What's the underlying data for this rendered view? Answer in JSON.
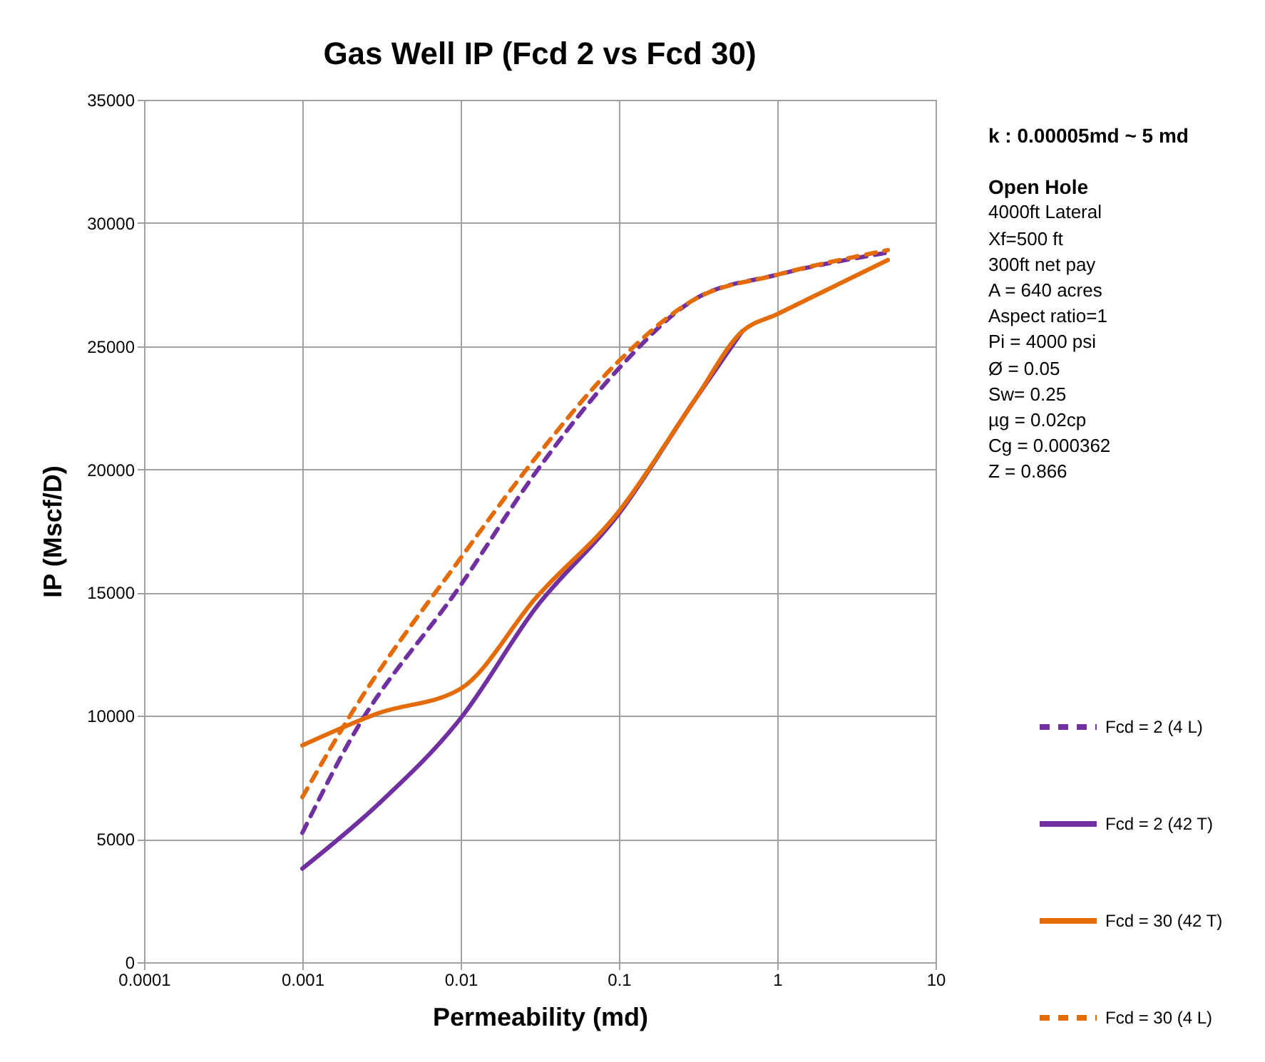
{
  "chart_data": {
    "type": "line",
    "title": "Gas Well IP (Fcd 2 vs Fcd 30)",
    "xlabel": "Permeability (md)",
    "ylabel": "IP (Mscf/D)",
    "log": "x",
    "xlim": [
      0.0001,
      10
    ],
    "xticks": [
      0.0001,
      0.001,
      0.01,
      0.1,
      1,
      10
    ],
    "ylim": [
      0,
      35000
    ],
    "yticks": [
      0,
      5000,
      10000,
      15000,
      20000,
      25000,
      30000,
      35000
    ],
    "grid": true,
    "legend": "bottom right",
    "marker": "none",
    "annotations": [
      "k : 0.00005md ~ 5 md",
      "Open Hole",
      "4000ft Lateral",
      "Xf=500 ft",
      "300ft net pay",
      "A = 640 acres",
      "Aspect ratio=1",
      "Pi = 4000 psi",
      "Ø = 0.05",
      "Sw= 0.25",
      "µg = 0.02cp",
      "Cg = 0.000362",
      "Z = 0.866"
    ],
    "series": [
      {
        "name": "Fcd = 2 (4 L)",
        "color": "#7030a0",
        "line_style": "dashed",
        "x": [
          0.001,
          0.002,
          0.01,
          0.03,
          0.1,
          0.3,
          1,
          5
        ],
        "values": [
          5250,
          9000,
          15300,
          19900,
          24100,
          26900,
          27900,
          28800
        ]
      },
      {
        "name": "Fcd = 2  (42 T)",
        "color": "#7030a0",
        "line_style": "solid",
        "x": [
          0.001,
          0.003,
          0.01,
          0.03,
          0.1,
          0.3,
          0.6
        ],
        "values": [
          3800,
          6400,
          9900,
          14400,
          18200,
          22800,
          25600
        ]
      },
      {
        "name": "Fcd = 30 (42 T)",
        "color": "#e36c09",
        "line_style": "solid",
        "x": [
          0.001,
          0.003,
          0.01,
          0.03,
          0.1,
          0.3,
          0.6,
          1,
          5
        ],
        "values": [
          8800,
          10100,
          11100,
          14800,
          18300,
          22800,
          25600,
          26300,
          28500
        ]
      },
      {
        "name": "Fcd = 30 (4 L)",
        "color": "#e36c09",
        "line_style": "dashed",
        "x": [
          0.001,
          0.002,
          0.01,
          0.03,
          0.1,
          0.3,
          1,
          5
        ],
        "values": [
          6700,
          10000,
          16400,
          20500,
          24400,
          26900,
          27900,
          28900
        ]
      }
    ]
  }
}
